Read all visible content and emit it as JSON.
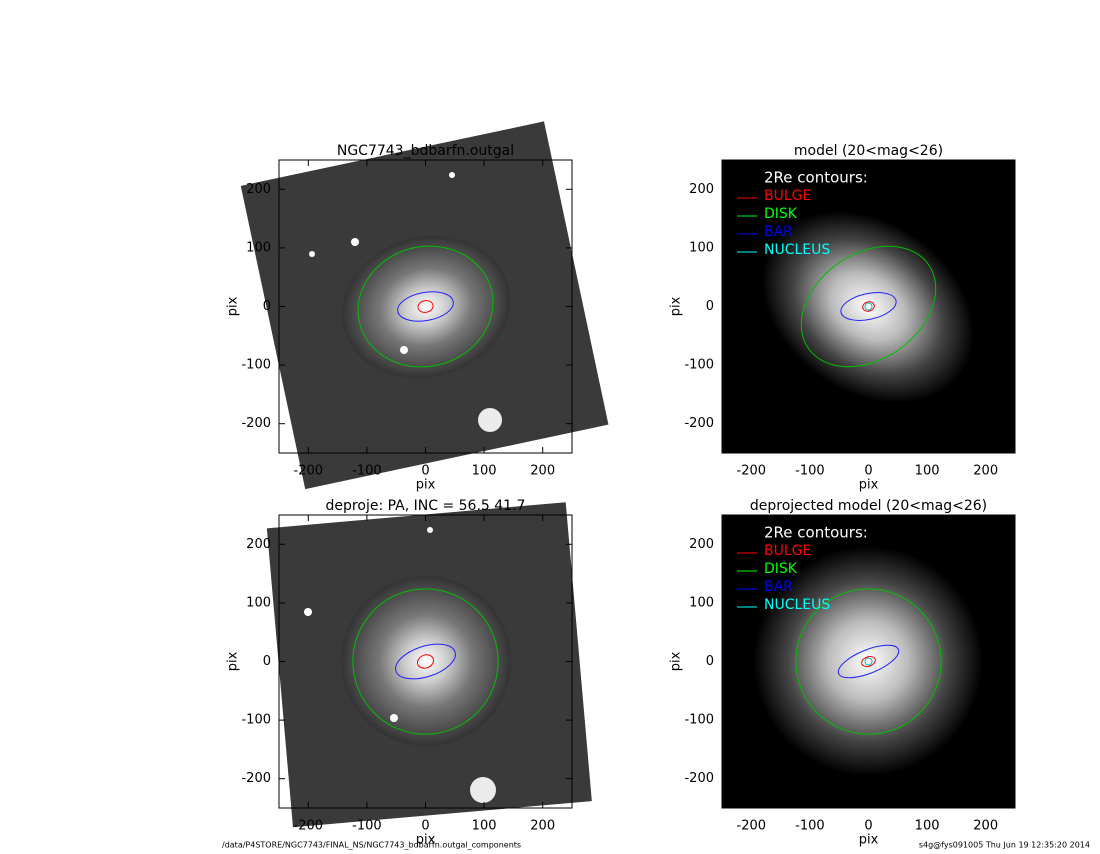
{
  "chart_data": [
    {
      "type": "image",
      "title": "NGC7743_bdbarfn.outgal",
      "xlabel": "pix",
      "ylabel": "pix",
      "xlim": [
        -250,
        250
      ],
      "ylim": [
        -250,
        250
      ],
      "xticks": [
        -200,
        -100,
        0,
        100,
        200
      ],
      "yticks": [
        -200,
        -100,
        0,
        100,
        200
      ],
      "contours": [
        {
          "color": "#ff0000",
          "rx": 13,
          "ry": 10,
          "angle": 10
        },
        {
          "color": "#00c000",
          "rx": 116,
          "ry": 102,
          "angle": 15
        },
        {
          "color": "#2020ff",
          "rx": 48,
          "ry": 24,
          "angle": 10
        }
      ]
    },
    {
      "type": "image",
      "title": "model (20<mag<26)",
      "xlabel": "pix",
      "ylabel": "pix",
      "xlim": [
        -250,
        250
      ],
      "ylim": [
        -250,
        250
      ],
      "xticks": [
        -200,
        -100,
        0,
        100,
        200
      ],
      "yticks": [
        -200,
        -100,
        0,
        100,
        200
      ],
      "legend": {
        "title": "2Re contours:",
        "entries": [
          {
            "name": "BULGE",
            "color": "#ff0000"
          },
          {
            "name": "DISK",
            "color": "#00ff00"
          },
          {
            "name": "BAR",
            "color": "#0000ff"
          },
          {
            "name": "NUCLEUS",
            "color": "#00ffff"
          }
        ]
      },
      "contours": [
        {
          "color": "#ff0000",
          "rx": 10,
          "ry": 8,
          "angle": 15
        },
        {
          "color": "#00c000",
          "rx": 125,
          "ry": 90,
          "angle": 35
        },
        {
          "color": "#2020ff",
          "rx": 48,
          "ry": 22,
          "angle": 12
        },
        {
          "color": "#00c0c0",
          "rx": 6,
          "ry": 6,
          "angle": 0
        }
      ]
    },
    {
      "type": "image",
      "title": "deproje: PA, INC =  56.5    41.7",
      "xlabel": "pix",
      "ylabel": "pix",
      "xlim": [
        -250,
        250
      ],
      "ylim": [
        -250,
        250
      ],
      "xticks": [
        -200,
        -100,
        0,
        100,
        200
      ],
      "yticks": [
        -200,
        -100,
        0,
        100,
        200
      ],
      "contours": [
        {
          "color": "#ff0000",
          "rx": 14,
          "ry": 11,
          "angle": 20
        },
        {
          "color": "#00c000",
          "rx": 124,
          "ry": 124,
          "angle": 0
        },
        {
          "color": "#2020ff",
          "rx": 53,
          "ry": 26,
          "angle": 18
        }
      ]
    },
    {
      "type": "image",
      "title": "deprojected model (20<mag<26)",
      "xlabel": "pix",
      "ylabel": "pix",
      "xlim": [
        -250,
        250
      ],
      "ylim": [
        -250,
        250
      ],
      "xticks": [
        -200,
        -100,
        0,
        100,
        200
      ],
      "yticks": [
        -200,
        -100,
        0,
        100,
        200
      ],
      "legend": {
        "title": "2Re contours:",
        "entries": [
          {
            "name": "BULGE",
            "color": "#ff0000"
          },
          {
            "name": "DISK",
            "color": "#00ff00"
          },
          {
            "name": "BAR",
            "color": "#0000ff"
          },
          {
            "name": "NUCLEUS",
            "color": "#00ffff"
          }
        ]
      },
      "contours": [
        {
          "color": "#ff0000",
          "rx": 12,
          "ry": 8,
          "angle": 20
        },
        {
          "color": "#00c000",
          "rx": 124,
          "ry": 124,
          "angle": 0
        },
        {
          "color": "#2020ff",
          "rx": 55,
          "ry": 20,
          "angle": 22
        },
        {
          "color": "#00c0c0",
          "rx": 6,
          "ry": 6,
          "angle": 0
        }
      ]
    }
  ],
  "footer": {
    "path": "/data/P4STORE/NGC7743/FINAL_NS/NGC7743_bdbarfn.outgal_components",
    "stamp": "s4g@fys091005  Thu Jun 19 12:35:20 2014"
  }
}
